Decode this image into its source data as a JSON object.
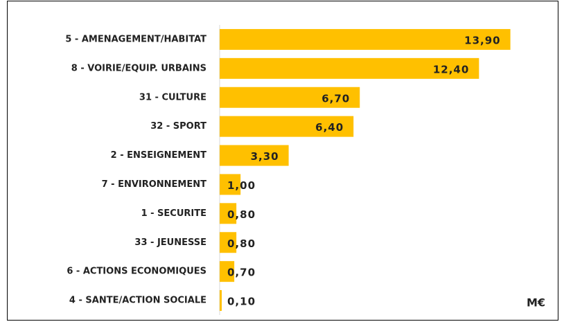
{
  "chart_data": {
    "type": "bar",
    "orientation": "horizontal",
    "categories": [
      "5 - AMENAGEMENT/HABITAT",
      "8 - VOIRIE/EQUIP. URBAINS",
      "31 - CULTURE",
      "32 - SPORT",
      "2 - ENSEIGNEMENT",
      "7 - ENVIRONNEMENT",
      "1 - SECURITE",
      "33 - JEUNESSE",
      "6 - ACTIONS ECONOMIQUES",
      "4 - SANTE/ACTION SOCIALE"
    ],
    "values": [
      13.9,
      12.4,
      6.7,
      6.4,
      3.3,
      1.0,
      0.8,
      0.8,
      0.7,
      0.1
    ],
    "value_labels": [
      "13,90",
      "12,40",
      "6,70",
      "6,40",
      "3,30",
      "1,00",
      "0,80",
      "0,80",
      "0,70",
      "0,10"
    ],
    "color": "#ffc000",
    "xlim": [
      0,
      16
    ],
    "x_label": "M€"
  }
}
